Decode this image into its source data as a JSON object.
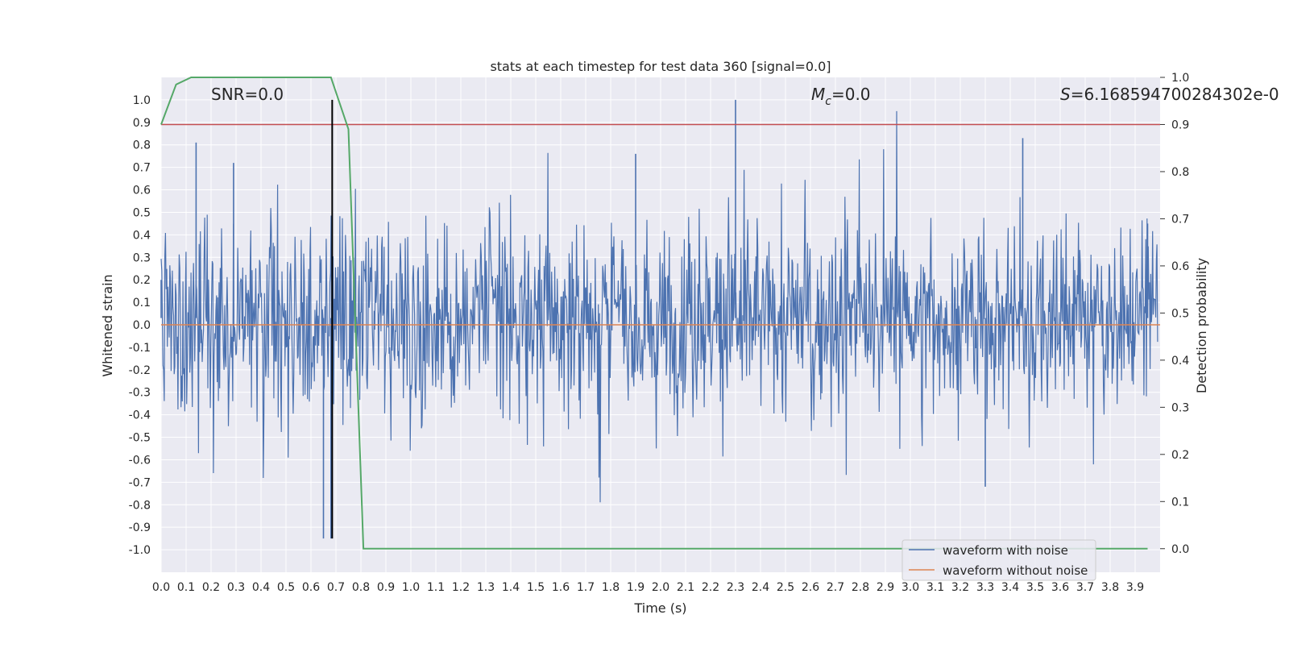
{
  "chart_data": {
    "type": "line",
    "title": "stats at each timestep for test data 360 [signal=0.0]",
    "xlabel": "Time (s)",
    "ylabel": "Whitened strain",
    "y2label": "Detection probability",
    "xlim": [
      0.0,
      4.0
    ],
    "ylim": [
      -1.1,
      1.1
    ],
    "y2lim": [
      -0.05,
      1.0
    ],
    "x_ticks": [
      "0.0",
      "0.1",
      "0.2",
      "0.3",
      "0.4",
      "0.5",
      "0.6",
      "0.7",
      "0.8",
      "0.9",
      "1.0",
      "1.1",
      "1.2",
      "1.3",
      "1.4",
      "1.5",
      "1.6",
      "1.7",
      "1.8",
      "1.9",
      "2.0",
      "2.1",
      "2.2",
      "2.3",
      "2.4",
      "2.5",
      "2.6",
      "2.7",
      "2.8",
      "2.9",
      "3.0",
      "3.1",
      "3.2",
      "3.3",
      "3.4",
      "3.5",
      "3.6",
      "3.7",
      "3.8",
      "3.9"
    ],
    "y_ticks": [
      "1.0",
      "0.9",
      "0.8",
      "0.7",
      "0.6",
      "0.5",
      "0.4",
      "0.3",
      "0.2",
      "0.1",
      "0.0",
      "-0.1",
      "-0.2",
      "-0.3",
      "-0.4",
      "-0.5",
      "-0.6",
      "-0.7",
      "-0.8",
      "-0.9",
      "-1.0"
    ],
    "y2_ticks": [
      "1.0",
      "0.9",
      "0.8",
      "0.7",
      "0.6",
      "0.5",
      "0.4",
      "0.3",
      "0.2",
      "0.1",
      "0.0"
    ],
    "grid": true,
    "legend_position": "bottom-right",
    "annotations": [
      {
        "text": "SNR=0.0"
      },
      {
        "text": "=0.0",
        "prefix_symbol": "M",
        "subscript": "c"
      },
      {
        "text": "=6.168594700284302e-0",
        "prefix_symbol": "S"
      }
    ],
    "series": [
      {
        "name": "waveform with noise",
        "color": "#4c72b0",
        "description_points": {
          "x": [
            0.0,
            0.14,
            0.29,
            0.65,
            0.68,
            1.9,
            2.3,
            3.3,
            3.45,
            3.95
          ],
          "y": [
            0.2,
            0.81,
            0.72,
            -0.95,
            -0.95,
            0.76,
            1.0,
            -0.72,
            0.83,
            0.45
          ]
        }
      },
      {
        "name": "waveform without noise",
        "color": "#dd8452",
        "x": [
          0.0,
          4.0
        ],
        "y": [
          0.0,
          0.0
        ]
      },
      {
        "color": "#55a868",
        "axis": "y2",
        "x": [
          0.0,
          0.06,
          0.12,
          0.18,
          0.25,
          0.31,
          0.37,
          0.43,
          0.49,
          0.55,
          0.61,
          0.68,
          0.75,
          0.81,
          1.0,
          2.0,
          3.0,
          3.95
        ],
        "y": [
          0.9,
          0.985,
          1.0,
          1.0,
          1.0,
          1.0,
          1.0,
          1.0,
          1.0,
          1.0,
          1.0,
          1.0,
          0.89,
          0.0,
          0.0,
          0.0,
          0.0,
          0.0
        ]
      },
      {
        "color": "#c44e52",
        "axis": "y2",
        "x": [
          0.0,
          4.0
        ],
        "y": [
          0.9,
          0.9
        ]
      }
    ],
    "vertical_lines": [
      {
        "x": 0.685,
        "color": "#000000"
      }
    ],
    "colors": {
      "plot_background": "#eaeaf2",
      "grid": "#ffffff",
      "noise": "#4c72b0",
      "clean": "#dd8452",
      "probability": "#55a868",
      "threshold": "#c44e52",
      "marker": "#000000"
    }
  }
}
